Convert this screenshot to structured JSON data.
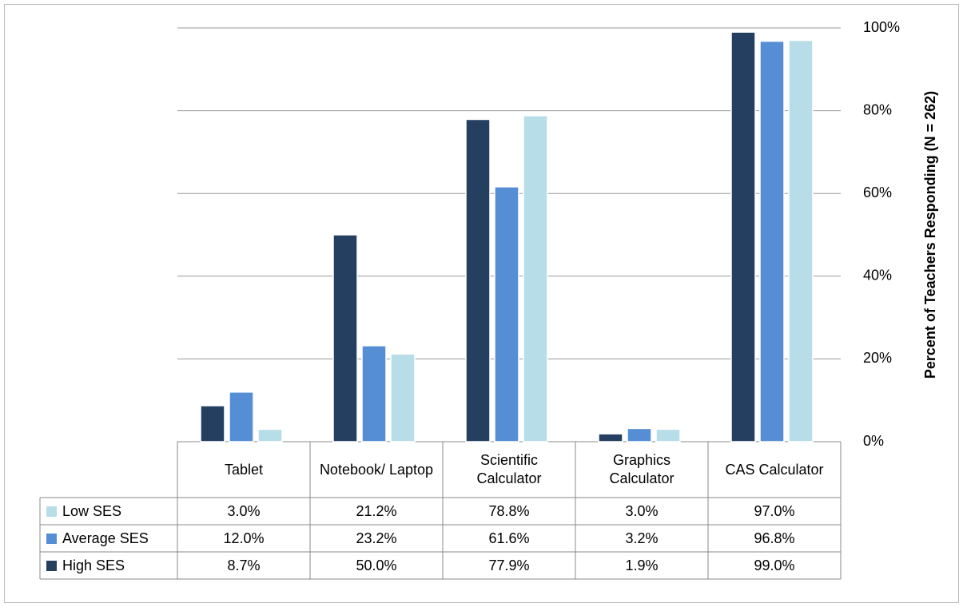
{
  "chart_data": {
    "type": "bar",
    "y_label": "Percent of Teachers Responding (N = 262)",
    "categories": [
      "Tablet",
      "Notebook/ Laptop",
      "Scientific Calculator",
      "Graphics Calculator",
      "CAS Calculator"
    ],
    "series": [
      {
        "name": "High SES",
        "color": "#243f60",
        "values": [
          8.7,
          50.0,
          77.9,
          1.9,
          99.0
        ],
        "value_labels": [
          "8.7%",
          "50.0%",
          "77.9%",
          "1.9%",
          "99.0%"
        ]
      },
      {
        "name": "Average SES",
        "color": "#558ed5",
        "values": [
          12.0,
          23.2,
          61.6,
          3.2,
          96.8
        ],
        "value_labels": [
          "12.0%",
          "23.2%",
          "61.6%",
          "3.2%",
          "96.8%"
        ]
      },
      {
        "name": "Low SES",
        "color": "#b7dde8",
        "values": [
          3.0,
          21.2,
          78.8,
          3.0,
          97.0
        ],
        "value_labels": [
          "3.0%",
          "21.2%",
          "78.8%",
          "3.0%",
          "97.0%"
        ]
      }
    ],
    "ylim": [
      0,
      100
    ],
    "yticks": [
      {
        "value": 0,
        "label": "0%"
      },
      {
        "value": 20,
        "label": "20%"
      },
      {
        "value": 40,
        "label": "40%"
      },
      {
        "value": 60,
        "label": "60%"
      },
      {
        "value": 80,
        "label": "80%"
      },
      {
        "value": 100,
        "label": "100%"
      }
    ],
    "grid": true
  }
}
